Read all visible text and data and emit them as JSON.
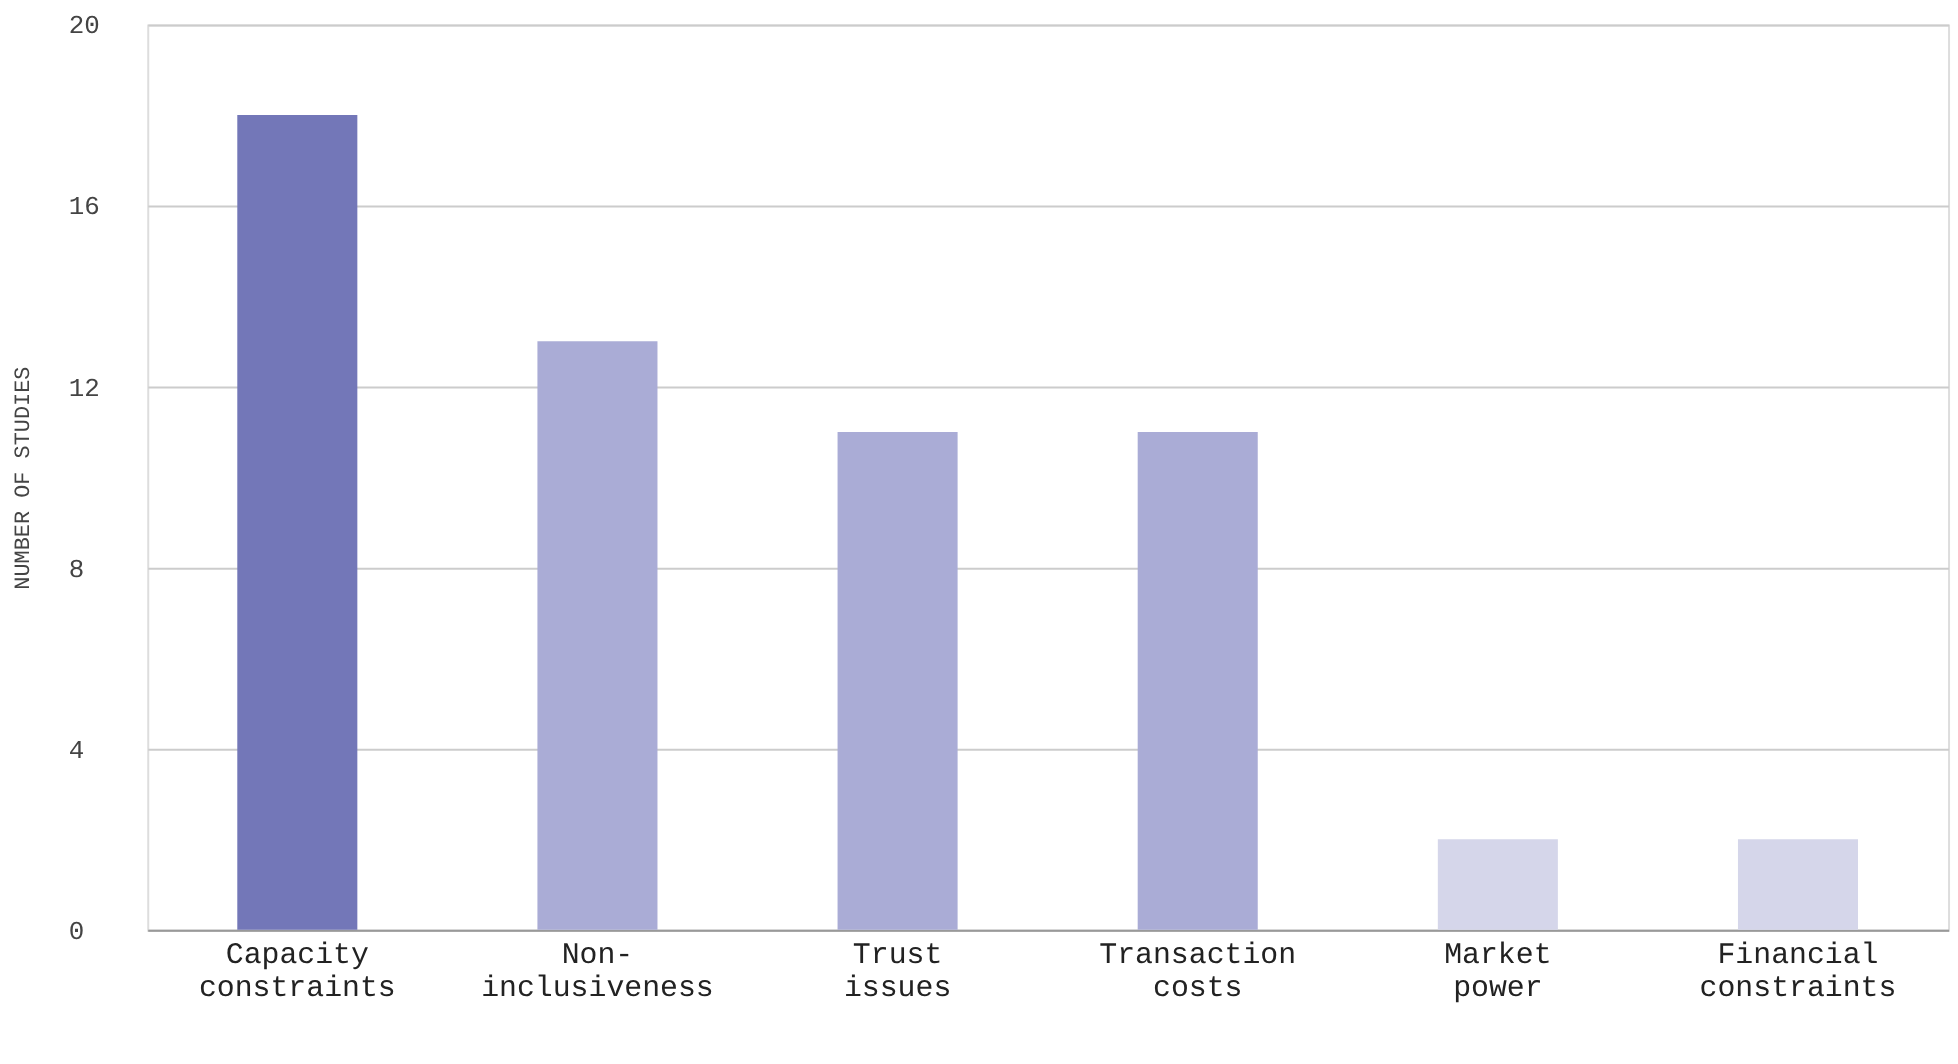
{
  "chart_data": {
    "type": "bar",
    "ylabel": "NUMBER OF STUDIES",
    "categories": [
      "Capacity\nconstraints",
      "Non-\ninclusiveness",
      "Trust\nissues",
      "Transaction\ncosts",
      "Market\npower",
      "Financial\nconstraints"
    ],
    "values": [
      18,
      13,
      11,
      11,
      2,
      2
    ],
    "colors": [
      "#7377b8",
      "#aaacd6",
      "#aaacd6",
      "#aaacd6",
      "#d5d6ea",
      "#d5d6ea"
    ],
    "ylim": [
      0,
      20
    ],
    "yticks": [
      0,
      4,
      8,
      12,
      16,
      20
    ],
    "grid": "y"
  }
}
